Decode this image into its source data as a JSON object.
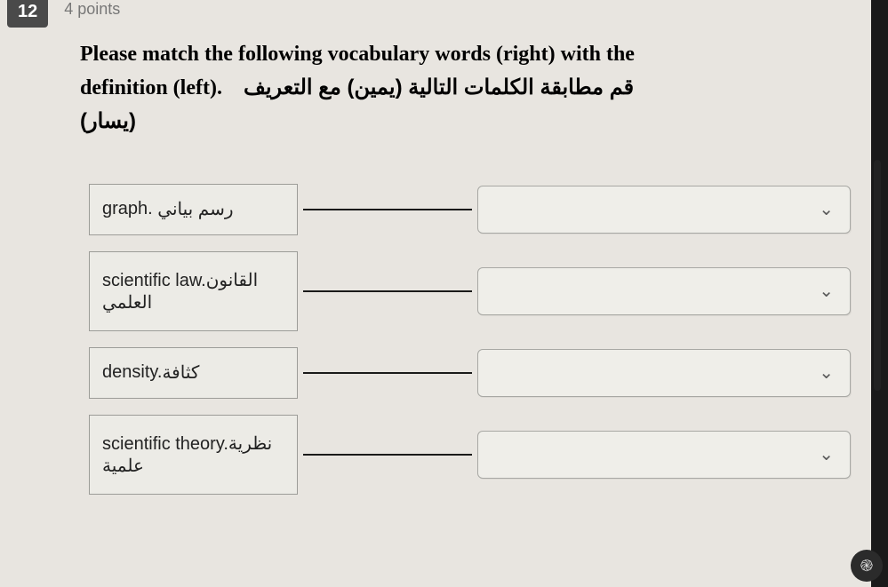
{
  "header": {
    "question_number": "12",
    "points": "4 points"
  },
  "prompt": {
    "line1_en": "Please match the following vocabulary words (right) with the",
    "line2_en_prefix": "definition (left).",
    "line2_ar": "قم مطابقة الكلمات التالية (يمين) مع التعريف",
    "line3_ar": "(يسار)"
  },
  "rows": [
    {
      "en": "graph.",
      "ar": "رسم بياني",
      "tall": false
    },
    {
      "en": "scientific law.",
      "ar": "القانون العلمي",
      "tall": true
    },
    {
      "en": "density.",
      "ar": "كثافة",
      "tall": false
    },
    {
      "en": "scientific theory.",
      "ar": "نظرية علمية",
      "tall": true
    }
  ],
  "colors": {
    "page_bg": "#e8e5e0",
    "body_bg": "#1a1a1a",
    "badge_bg": "#4a4a4a",
    "badge_fg": "#ffffff",
    "points_fg": "#777777",
    "prompt_fg": "#000000",
    "box_border": "#9c9c98",
    "box_bg": "#ecebe6",
    "connector": "#1a1a1a",
    "dropdown_border": "#a8a8a4",
    "dropdown_bg": "#efeee9",
    "chevron": "#5a5a5a"
  },
  "icons": {
    "chevron_down": "⌄",
    "assistant": "֎"
  }
}
